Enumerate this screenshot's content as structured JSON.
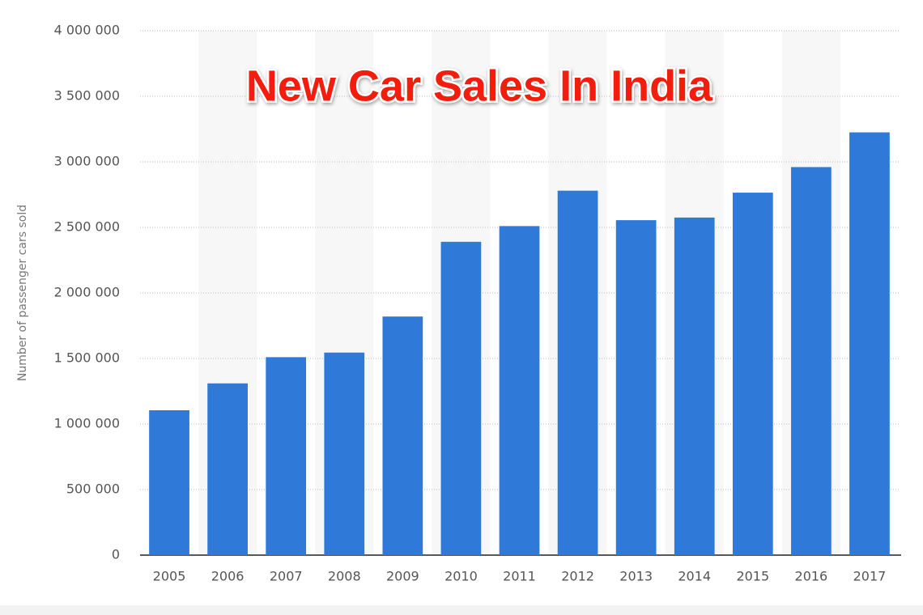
{
  "chart_data": {
    "type": "bar",
    "title": "New Car Sales In India",
    "y_axis_label": "Number of passenger cars sold",
    "categories": [
      "2005",
      "2006",
      "2007",
      "2008",
      "2009",
      "2010",
      "2011",
      "2012",
      "2013",
      "2014",
      "2015",
      "2016",
      "2017"
    ],
    "values": [
      1105000,
      1310000,
      1510000,
      1545000,
      1820000,
      2390000,
      2510000,
      2780000,
      2555000,
      2575000,
      2765000,
      2960000,
      3225000
    ],
    "color": "#2f7ad9",
    "ylim": [
      0,
      4000000
    ],
    "yticks": [
      0,
      {
        "value": 500000,
        "label": "500 000"
      },
      {
        "value": 1000000,
        "label": "1 000 000"
      },
      {
        "value": 1500000,
        "label": "1 500 000"
      },
      {
        "value": 2000000,
        "label": "2 000 000"
      },
      {
        "value": 2500000,
        "label": "2 500 000"
      },
      {
        "value": 3000000,
        "label": "3 000 000"
      },
      {
        "value": 3500000,
        "label": "3 500 000"
      },
      {
        "value": 4000000,
        "label": "4 000 000"
      }
    ],
    "grid": true
  }
}
